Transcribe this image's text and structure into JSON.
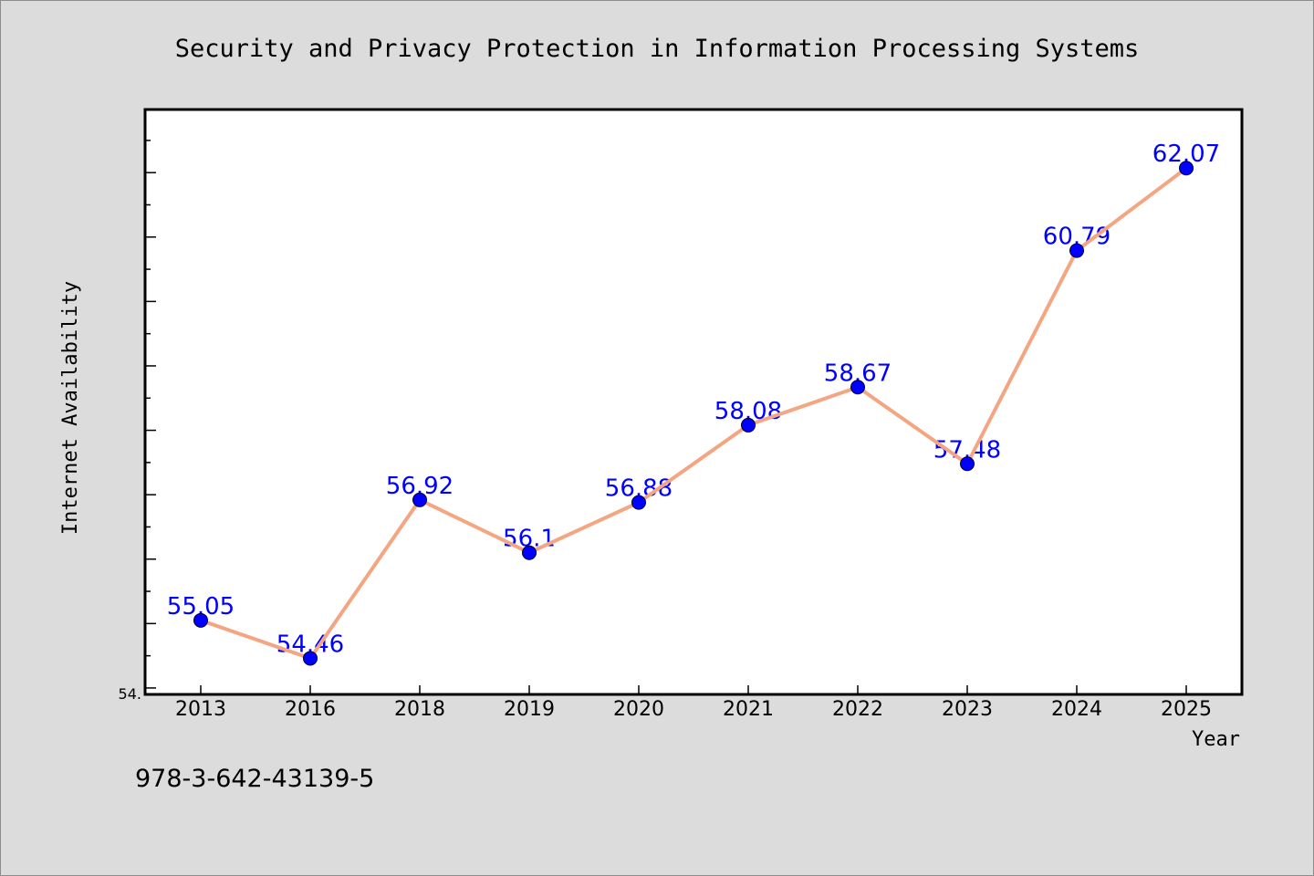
{
  "chart_data": {
    "type": "line",
    "title": "Security and Privacy Protection in Information Processing Systems",
    "xlabel": "Year",
    "ylabel": "Internet Availability",
    "categories": [
      "2013",
      "2016",
      "2018",
      "2019",
      "2020",
      "2021",
      "2022",
      "2023",
      "2024",
      "2025"
    ],
    "series": [
      {
        "values": [
          55.05,
          54.46,
          56.92,
          56.1,
          56.88,
          58.08,
          58.67,
          57.48,
          60.79,
          62.07
        ],
        "labels": [
          "55.05",
          "54.46",
          "56.92",
          "56.1",
          "56.88",
          "58.08",
          "58.67",
          "57.48",
          "60.79",
          "62.07"
        ]
      }
    ],
    "ylim": [
      53.9,
      62.98
    ],
    "y_axis_visible_label": "54.",
    "grid": false,
    "legend": "none",
    "colors": {
      "line": "#f4a582",
      "marker": "#0000ff",
      "data_label": "#0000ff",
      "background": "#dcdcdc",
      "plot_background": "#ffffff"
    }
  },
  "footer": {
    "isbn": "978-3-642-43139-5"
  }
}
